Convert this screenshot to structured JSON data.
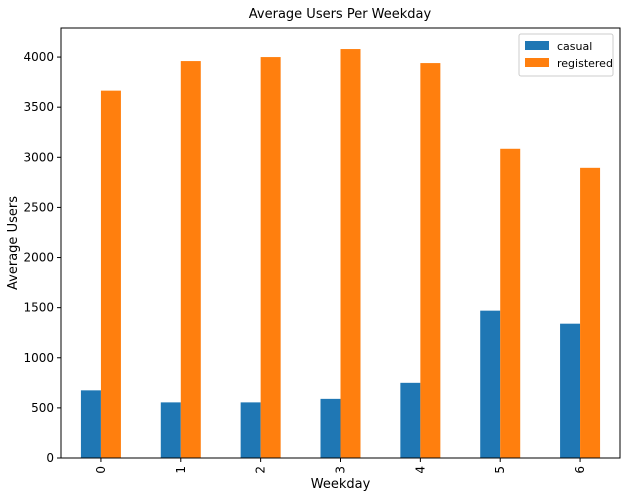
{
  "chart_data": {
    "type": "bar",
    "title": "Average Users Per Weekday",
    "xlabel": "Weekday",
    "ylabel": "Average Users",
    "categories": [
      "0",
      "1",
      "2",
      "3",
      "4",
      "5",
      "6"
    ],
    "series": [
      {
        "name": "casual",
        "color": "#1f77b4",
        "values": [
          675,
          555,
          555,
          590,
          750,
          1470,
          1340
        ]
      },
      {
        "name": "registered",
        "color": "#ff7f0e",
        "values": [
          3665,
          3960,
          4000,
          4080,
          3940,
          3085,
          2895
        ]
      }
    ],
    "ylim": [
      0,
      4290
    ],
    "yticks": [
      0,
      500,
      1000,
      1500,
      2000,
      2500,
      3000,
      3500,
      4000
    ],
    "ytick_labels": [
      "0",
      "500",
      "1000",
      "1500",
      "2000",
      "2500",
      "3000",
      "3500",
      "4000"
    ],
    "grid": false,
    "legend_position": "top-right",
    "x_tick_rotation": "vertical"
  }
}
